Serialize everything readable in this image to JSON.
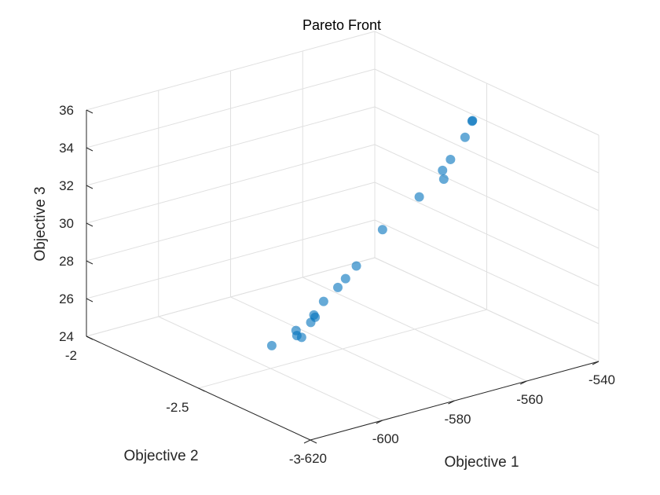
{
  "chart_data": {
    "type": "scatter3d",
    "title": "Pareto Front",
    "xlabel": "Objective 1",
    "ylabel": "Objective 2",
    "zlabel": "Objective 3",
    "xlim": [
      -620,
      -540
    ],
    "ylim": [
      -3,
      -2
    ],
    "zlim": [
      24,
      36
    ],
    "xticks": [
      -620,
      -600,
      -580,
      -560,
      -540
    ],
    "yticks": [
      -3,
      -2.5,
      -2
    ],
    "zticks": [
      24,
      26,
      28,
      30,
      32,
      34,
      36
    ],
    "xtick_labels": [
      "-620",
      "-600",
      "-580",
      "-560",
      "-540"
    ],
    "ytick_labels": [
      "-3",
      "-2.5",
      "-2"
    ],
    "ztick_labels": [
      "24",
      "26",
      "28",
      "30",
      "32",
      "34",
      "36"
    ],
    "grid": true,
    "marker_color": "#0072BD",
    "points": [
      {
        "x": -598.74,
        "y": -2.4855,
        "z": 25.07
      },
      {
        "x": -593.23,
        "y": -2.5088,
        "z": 25.44
      },
      {
        "x": -591.64,
        "y": -2.5044,
        "z": 25.24
      },
      {
        "x": -592.3,
        "y": -2.4902,
        "z": 25.56
      },
      {
        "x": -588.6,
        "y": -2.4964,
        "z": 25.83
      },
      {
        "x": -586.93,
        "y": -2.4891,
        "z": 25.98
      },
      {
        "x": -586.8,
        "y": -2.4813,
        "z": 26.05
      },
      {
        "x": -583.93,
        "y": -2.4785,
        "z": 26.6
      },
      {
        "x": -579.65,
        "y": -2.4733,
        "z": 27.09
      },
      {
        "x": -577.25,
        "y": -2.469,
        "z": 27.41
      },
      {
        "x": -573.86,
        "y": -2.4627,
        "z": 27.87
      },
      {
        "x": -565.46,
        "y": -2.4443,
        "z": 29.26
      },
      {
        "x": -555.03,
        "y": -2.4405,
        "z": 30.43
      },
      {
        "x": -548.68,
        "y": -2.4479,
        "z": 31.08
      },
      {
        "x": -547.92,
        "y": -2.4301,
        "z": 31.41
      },
      {
        "x": -545.26,
        "y": -2.4228,
        "z": 31.81
      },
      {
        "x": -540.69,
        "y": -2.4142,
        "z": 32.7
      },
      {
        "x": -537.95,
        "y": -2.4016,
        "z": 33.34
      },
      {
        "x": -537.8,
        "y": -2.4008,
        "z": 33.36
      }
    ]
  }
}
